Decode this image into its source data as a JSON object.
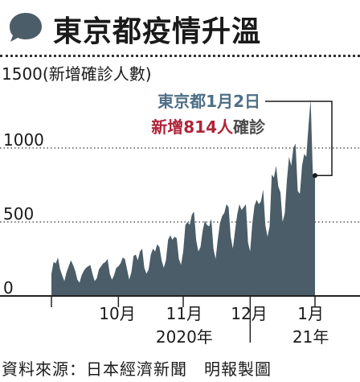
{
  "title": "東京都疫情升溫",
  "source": "資料來源：日本經濟新聞　明報製圖",
  "colors": {
    "area": "#4b5d68",
    "accent": "#b0243a",
    "callout_blue": "#4e6f86"
  },
  "chart_data": {
    "type": "area",
    "ylabel": "1500(新增確診人數)",
    "yticks": [
      0,
      500,
      1000
    ],
    "ylim": [
      0,
      1500
    ],
    "xlim": [
      0,
      122
    ],
    "xticks": [
      {
        "x": 30.5,
        "label": "10月"
      },
      {
        "x": 61.5,
        "label": "11月"
      },
      {
        "x": 91.5,
        "label": "12月"
      },
      {
        "x": 120,
        "label": "1月"
      }
    ],
    "year_labels": [
      {
        "x": 61.5,
        "label": "2020年"
      },
      {
        "x": 120,
        "label": "21年"
      }
    ],
    "callout": {
      "line1": "東京都1月2日",
      "line2_red": "新增814人",
      "line2_rest": "確診",
      "x": 122,
      "value": 814
    },
    "x": [
      0,
      1,
      2,
      3,
      4,
      5,
      6,
      7,
      8,
      9,
      10,
      11,
      12,
      13,
      14,
      15,
      16,
      17,
      18,
      19,
      20,
      21,
      22,
      23,
      24,
      25,
      26,
      27,
      28,
      29,
      30,
      31,
      32,
      33,
      34,
      35,
      36,
      37,
      38,
      39,
      40,
      41,
      42,
      43,
      44,
      45,
      46,
      47,
      48,
      49,
      50,
      51,
      52,
      53,
      54,
      55,
      56,
      57,
      58,
      59,
      60,
      61,
      62,
      63,
      64,
      65,
      66,
      67,
      68,
      69,
      70,
      71,
      72,
      73,
      74,
      75,
      76,
      77,
      78,
      79,
      80,
      81,
      82,
      83,
      84,
      85,
      86,
      87,
      88,
      89,
      90,
      91,
      92,
      93,
      94,
      95,
      96,
      97,
      98,
      99,
      100,
      101,
      102,
      103,
      104,
      105,
      106,
      107,
      108,
      109,
      110,
      111,
      112,
      113,
      114,
      115,
      116,
      117,
      118,
      119,
      120,
      121,
      122
    ],
    "values": [
      150,
      230,
      220,
      260,
      180,
      140,
      100,
      160,
      200,
      240,
      210,
      170,
      110,
      90,
      140,
      170,
      190,
      200,
      210,
      150,
      100,
      120,
      180,
      200,
      220,
      230,
      250,
      150,
      110,
      140,
      190,
      200,
      220,
      260,
      250,
      180,
      110,
      160,
      270,
      280,
      240,
      300,
      320,
      190,
      150,
      180,
      280,
      320,
      300,
      350,
      330,
      240,
      190,
      240,
      380,
      410,
      380,
      400,
      390,
      250,
      210,
      300,
      480,
      500,
      480,
      550,
      570,
      380,
      300,
      330,
      440,
      510,
      480,
      470,
      520,
      320,
      250,
      380,
      490,
      540,
      560,
      620,
      600,
      400,
      320,
      440,
      550,
      620,
      580,
      600,
      620,
      360,
      300,
      490,
      610,
      650,
      620,
      640,
      720,
      480,
      400,
      470,
      820,
      800,
      880,
      740,
      700,
      500,
      560,
      780,
      940,
      880,
      1000,
      1030,
      710,
      690,
      880,
      960,
      940,
      1150,
      1330,
      820,
      814
    ]
  }
}
